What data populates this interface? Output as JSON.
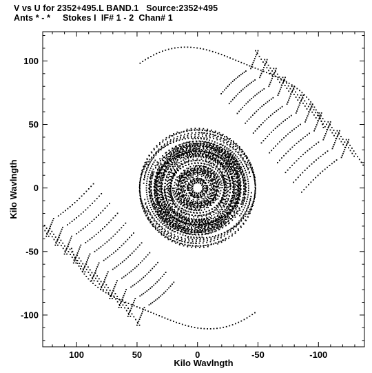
{
  "header": {
    "line1": "V vs U for 2352+495.L BAND.1   Source:2352+495",
    "line2": "Ants * - *     Stokes I  IF# 1 - 2  Chan# 1"
  },
  "chart_data": {
    "type": "scatter",
    "title": "V vs U for 2352+495.L BAND.1   Source:2352+495",
    "subtitle": "Ants * - *     Stokes I  IF# 1 - 2  Chan# 1",
    "xlabel": "Kilo Wavlngth",
    "ylabel": "Kilo Wavlngth",
    "xlim": [
      128,
      -138
    ],
    "ylim": [
      -125,
      123
    ],
    "x_ticks": [
      100,
      50,
      0,
      -50,
      -100
    ],
    "x_tick_labels": [
      "100",
      "50",
      "0",
      "-50",
      "-100"
    ],
    "y_ticks": [
      100,
      50,
      0,
      -50,
      -100
    ],
    "y_tick_labels": [
      "100",
      "50",
      "0",
      "-50",
      "-100"
    ],
    "grid": false,
    "marker": "dot",
    "color": "#000000",
    "components": [
      {
        "region": "central core",
        "u_range": [
          -52,
          52
        ],
        "v_range": [
          -48,
          48
        ]
      },
      {
        "region": "upper-right arc",
        "u_range": [
          -128,
          -28
        ],
        "v_range": [
          -1,
          118
        ]
      },
      {
        "region": "lower-left arc",
        "u_range": [
          28,
          128
        ],
        "v_range": [
          -118,
          1
        ]
      }
    ]
  }
}
